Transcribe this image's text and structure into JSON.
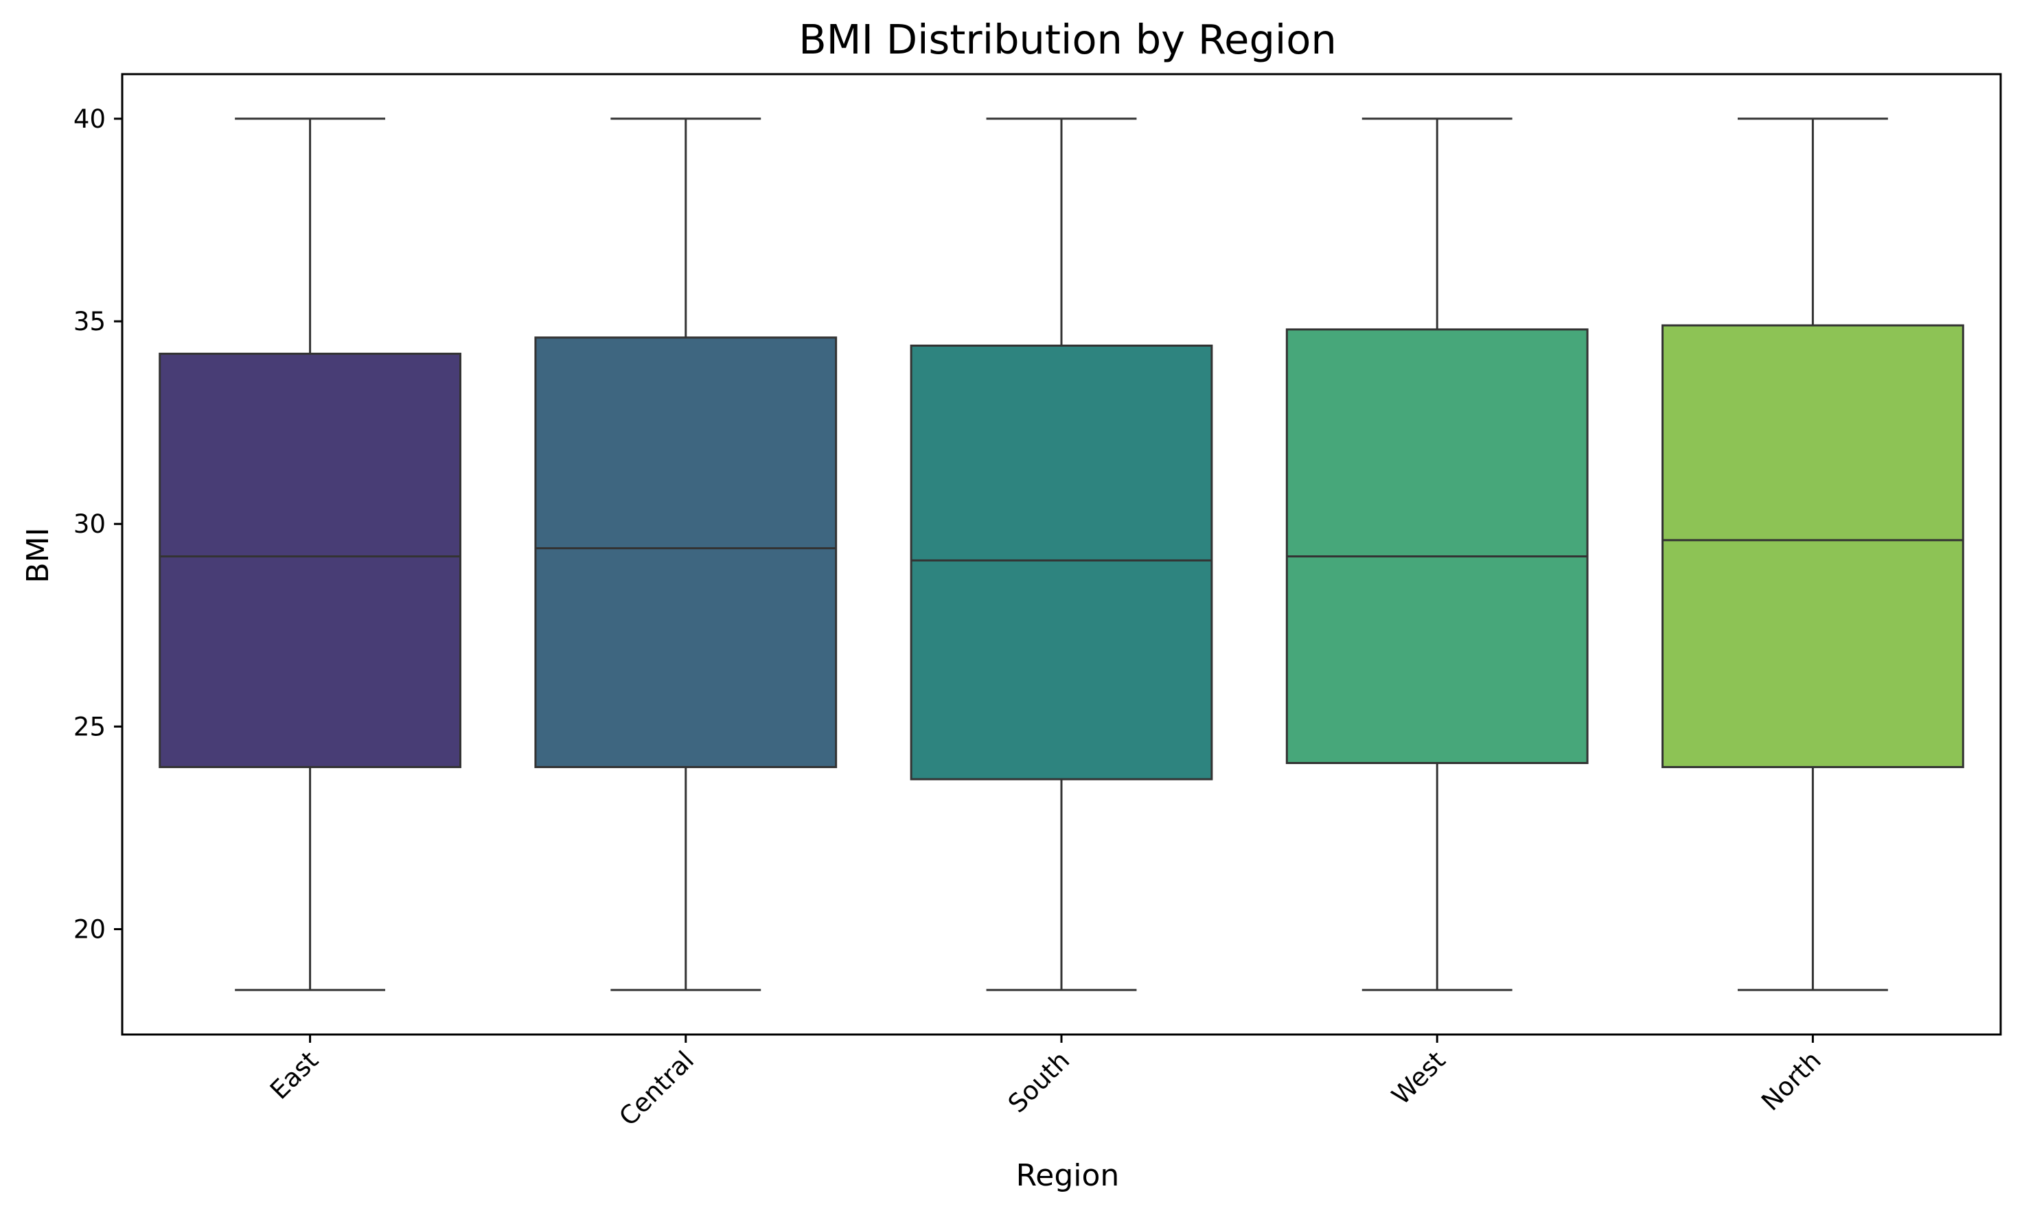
{
  "chart_data": {
    "type": "box",
    "title": "BMI Distribution by Region",
    "xlabel": "Region",
    "ylabel": "BMI",
    "ylim": [
      17.4,
      41.1
    ],
    "yticks": [
      20,
      25,
      30,
      35,
      40
    ],
    "grid": false,
    "x_tick_rotation_deg": 45,
    "categories": [
      "East",
      "Central",
      "South",
      "West",
      "North"
    ],
    "boxes": [
      {
        "category": "East",
        "whisker_low": 18.5,
        "q1": 24.0,
        "median": 29.2,
        "q3": 34.2,
        "whisker_high": 40.0,
        "color": "#483d75"
      },
      {
        "category": "Central",
        "whisker_low": 18.5,
        "q1": 24.0,
        "median": 29.4,
        "q3": 34.6,
        "whisker_high": 40.0,
        "color": "#3e6680"
      },
      {
        "category": "South",
        "whisker_low": 18.5,
        "q1": 23.7,
        "median": 29.1,
        "q3": 34.4,
        "whisker_high": 40.0,
        "color": "#2e847f"
      },
      {
        "category": "West",
        "whisker_low": 18.5,
        "q1": 24.1,
        "median": 29.2,
        "q3": 34.8,
        "whisker_high": 40.0,
        "color": "#47a77a"
      },
      {
        "category": "North",
        "whisker_low": 18.5,
        "q1": 24.0,
        "median": 29.6,
        "q3": 34.9,
        "whisker_high": 40.0,
        "color": "#8dc355"
      }
    ]
  }
}
